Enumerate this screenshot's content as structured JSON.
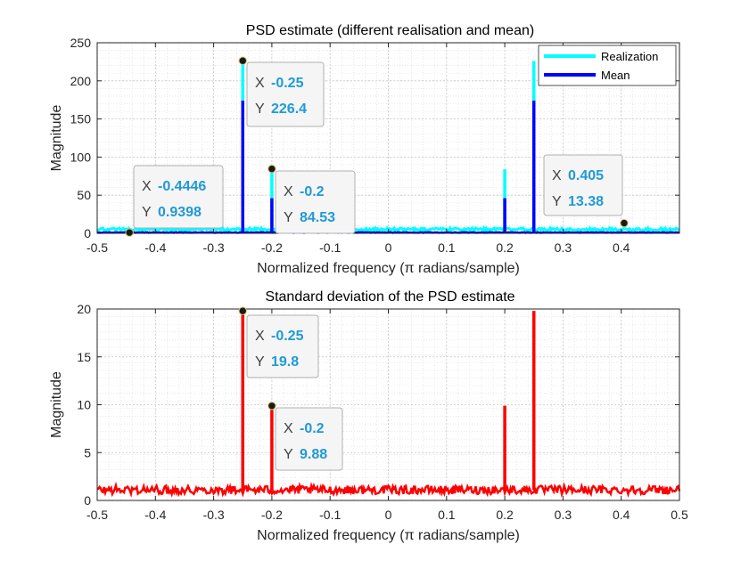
{
  "chart_data": [
    {
      "type": "line",
      "title": "PSD estimate (different realisation and mean)",
      "xlabel": "Normalized frequency (π radians/sample)",
      "ylabel": "Magnitude",
      "xlim": [
        -0.5,
        0.5
      ],
      "ylim": [
        0,
        250
      ],
      "xticks": [
        -0.5,
        -0.4,
        -0.3,
        -0.2,
        -0.1,
        0,
        0.1,
        0.2,
        0.3,
        0.4
      ],
      "yticks": [
        0,
        50,
        100,
        150,
        200,
        250
      ],
      "grid": true,
      "legend_position": "top-right",
      "series": [
        {
          "name": "Realization",
          "color": "#00ffff",
          "baseline": 5,
          "peaks": [
            {
              "x": -0.25,
              "y": 226.4
            },
            {
              "x": -0.2,
              "y": 84.53
            },
            {
              "x": 0.2,
              "y": 84
            },
            {
              "x": 0.25,
              "y": 226
            }
          ]
        },
        {
          "name": "Mean",
          "color": "#0000ff",
          "baseline": 1,
          "peaks": [
            {
              "x": -0.25,
              "y": 174
            },
            {
              "x": -0.2,
              "y": 46
            },
            {
              "x": 0.2,
              "y": 46
            },
            {
              "x": 0.25,
              "y": 174
            }
          ]
        }
      ],
      "datatips": [
        {
          "x": -0.4446,
          "y": 0.9398,
          "x_text": "-0.4446",
          "y_text": "0.9398"
        },
        {
          "x": -0.25,
          "y": 226.4,
          "x_text": "-0.25",
          "y_text": "226.4"
        },
        {
          "x": -0.2,
          "y": 84.53,
          "x_text": "-0.2",
          "y_text": "84.53"
        },
        {
          "x": 0.405,
          "y": 13.38,
          "x_text": "0.405",
          "y_text": "13.38"
        }
      ]
    },
    {
      "type": "line",
      "title": "Standard deviation of the PSD estimate",
      "xlabel": "Normalized frequency (π radians/sample)",
      "ylabel": "Magnitude",
      "xlim": [
        -0.5,
        0.5
      ],
      "ylim": [
        0,
        20
      ],
      "xticks": [
        -0.5,
        -0.4,
        -0.3,
        -0.2,
        -0.1,
        0,
        0.1,
        0.2,
        0.3,
        0.4,
        0.5
      ],
      "yticks": [
        0,
        5,
        10,
        15,
        20
      ],
      "grid": true,
      "series": [
        {
          "color": "#ff0000",
          "baseline": 1.1,
          "peaks": [
            {
              "x": -0.25,
              "y": 19.8
            },
            {
              "x": -0.2,
              "y": 9.88
            },
            {
              "x": 0.2,
              "y": 9.9
            },
            {
              "x": 0.25,
              "y": 19.8
            }
          ]
        }
      ],
      "datatips": [
        {
          "x": -0.25,
          "y": 19.8,
          "x_text": "-0.25",
          "y_text": "19.8"
        },
        {
          "x": -0.2,
          "y": 9.88,
          "x_text": "-0.2",
          "y_text": "9.88"
        }
      ]
    }
  ],
  "labels": {
    "tip_x": "X",
    "tip_y": "Y"
  }
}
